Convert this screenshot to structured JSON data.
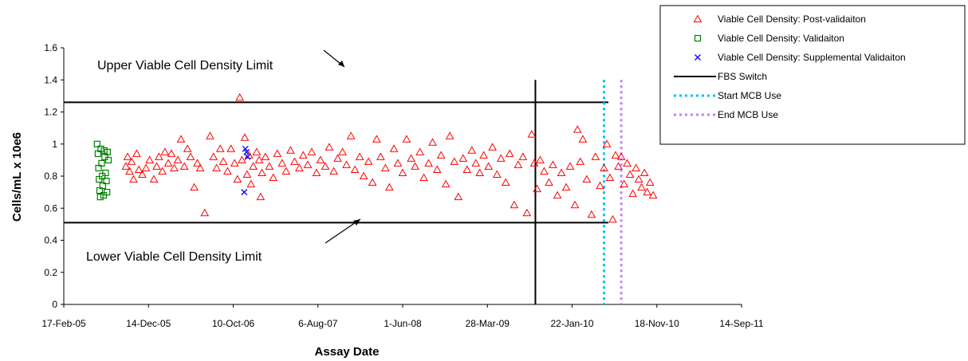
{
  "chart_data": {
    "type": "scatter",
    "xlabel": "Assay Date",
    "ylabel": "Cells/mL x 10e6",
    "ylim": [
      0,
      1.6
    ],
    "yticks": [
      0,
      0.2,
      0.4,
      0.6,
      0.8,
      1,
      1.2,
      1.4,
      1.6
    ],
    "ytick_labels": [
      "0",
      "0.2",
      "0.4",
      "0.6",
      "0.8",
      "1",
      "1.2",
      "1.4",
      "1.6"
    ],
    "xlim": [
      "2005-02-17",
      "2011-09-14"
    ],
    "xticks": [
      "2005-02-17",
      "2005-12-14",
      "2006-10-10",
      "2007-08-06",
      "2008-06-01",
      "2009-03-28",
      "2010-01-22",
      "2010-11-18",
      "2011-09-14"
    ],
    "xtick_labels": [
      "17-Feb-05",
      "14-Dec-05",
      "10-Oct-06",
      "6-Aug-07",
      "1-Jun-08",
      "28-Mar-09",
      "22-Jan-10",
      "18-Nov-10",
      "14-Sep-11"
    ],
    "grid": false,
    "legend_position": "top-right",
    "reference_lines": {
      "upper_limit": 1.26,
      "lower_limit": 0.51,
      "fbs_switch": "2009-09-14",
      "start_mcb": "2010-05-15",
      "end_mcb": "2010-07-15"
    },
    "annotations": {
      "upper": "Upper Viable Cell Density Limit",
      "lower": "Lower Viable Cell Density Limit"
    },
    "legend": [
      {
        "label": "Viable Cell Density: Post-validaiton",
        "marker": "triangle",
        "color": "#ff0000"
      },
      {
        "label": "Viable Cell Density: Validaiton",
        "marker": "square",
        "color": "#008000"
      },
      {
        "label": "Viable Cell Density: Supplemental Validaiton",
        "marker": "x",
        "color": "#0000ff"
      },
      {
        "label": "FBS Switch",
        "marker": "solid-line",
        "color": "#000000"
      },
      {
        "label": "Start MCB Use",
        "marker": "dotted-line",
        "color": "#00c0ff"
      },
      {
        "label": "End MCB Use",
        "marker": "dotted-line",
        "color": "#c080ff"
      }
    ],
    "series": [
      {
        "name": "Viable Cell Density: Post-validaiton",
        "points": [
          [
            "2005-09-25",
            0.86
          ],
          [
            "2005-10-01",
            0.92
          ],
          [
            "2005-10-08",
            0.83
          ],
          [
            "2005-10-15",
            0.89
          ],
          [
            "2005-10-22",
            0.78
          ],
          [
            "2005-11-02",
            0.94
          ],
          [
            "2005-11-10",
            0.84
          ],
          [
            "2005-11-22",
            0.81
          ],
          [
            "2005-12-05",
            0.85
          ],
          [
            "2005-12-18",
            0.9
          ],
          [
            "2006-01-02",
            0.78
          ],
          [
            "2006-01-12",
            0.86
          ],
          [
            "2006-01-20",
            0.92
          ],
          [
            "2006-02-01",
            0.83
          ],
          [
            "2006-02-10",
            0.95
          ],
          [
            "2006-02-22",
            0.88
          ],
          [
            "2006-03-05",
            0.94
          ],
          [
            "2006-03-15",
            0.85
          ],
          [
            "2006-03-28",
            0.9
          ],
          [
            "2006-04-08",
            1.03
          ],
          [
            "2006-04-20",
            0.86
          ],
          [
            "2006-05-01",
            0.97
          ],
          [
            "2006-05-12",
            0.92
          ],
          [
            "2006-05-25",
            0.73
          ],
          [
            "2006-06-05",
            0.88
          ],
          [
            "2006-06-15",
            0.85
          ],
          [
            "2006-07-01",
            0.57
          ],
          [
            "2006-07-20",
            1.05
          ],
          [
            "2006-08-01",
            0.92
          ],
          [
            "2006-08-12",
            0.85
          ],
          [
            "2006-08-25",
            0.97
          ],
          [
            "2006-09-05",
            0.89
          ],
          [
            "2006-09-20",
            0.83
          ],
          [
            "2006-10-02",
            0.97
          ],
          [
            "2006-10-15",
            0.88
          ],
          [
            "2006-10-25",
            0.78
          ],
          [
            "2006-11-02",
            1.29
          ],
          [
            "2006-11-10",
            0.9
          ],
          [
            "2006-11-20",
            1.04
          ],
          [
            "2006-11-28",
            0.81
          ],
          [
            "2006-12-05",
            0.93
          ],
          [
            "2006-12-12",
            0.75
          ],
          [
            "2006-12-20",
            0.86
          ],
          [
            "2007-01-01",
            0.95
          ],
          [
            "2007-01-10",
            0.9
          ],
          [
            "2007-01-15",
            0.67
          ],
          [
            "2007-01-20",
            0.82
          ],
          [
            "2007-02-01",
            0.92
          ],
          [
            "2007-02-15",
            0.86
          ],
          [
            "2007-03-01",
            0.79
          ],
          [
            "2007-03-15",
            0.94
          ],
          [
            "2007-04-01",
            0.88
          ],
          [
            "2007-04-15",
            0.83
          ],
          [
            "2007-05-01",
            0.96
          ],
          [
            "2007-05-15",
            0.89
          ],
          [
            "2007-06-01",
            0.85
          ],
          [
            "2007-06-15",
            0.93
          ],
          [
            "2007-07-01",
            0.87
          ],
          [
            "2007-07-15",
            0.95
          ],
          [
            "2007-08-01",
            0.82
          ],
          [
            "2007-08-15",
            0.9
          ],
          [
            "2007-09-01",
            0.86
          ],
          [
            "2007-09-15",
            0.98
          ],
          [
            "2007-10-01",
            0.83
          ],
          [
            "2007-10-15",
            0.91
          ],
          [
            "2007-11-01",
            0.95
          ],
          [
            "2007-11-15",
            0.87
          ],
          [
            "2007-12-01",
            1.05
          ],
          [
            "2007-12-15",
            0.84
          ],
          [
            "2008-01-01",
            0.92
          ],
          [
            "2008-01-15",
            0.8
          ],
          [
            "2008-02-01",
            0.89
          ],
          [
            "2008-02-15",
            0.76
          ],
          [
            "2008-03-01",
            1.03
          ],
          [
            "2008-03-15",
            0.92
          ],
          [
            "2008-04-01",
            0.85
          ],
          [
            "2008-04-15",
            0.73
          ],
          [
            "2008-05-01",
            0.97
          ],
          [
            "2008-05-15",
            0.88
          ],
          [
            "2008-06-01",
            0.82
          ],
          [
            "2008-06-15",
            1.03
          ],
          [
            "2008-07-01",
            0.91
          ],
          [
            "2008-07-15",
            0.86
          ],
          [
            "2008-08-01",
            0.95
          ],
          [
            "2008-08-15",
            0.79
          ],
          [
            "2008-09-01",
            0.88
          ],
          [
            "2008-09-15",
            1.01
          ],
          [
            "2008-10-01",
            0.84
          ],
          [
            "2008-10-15",
            0.93
          ],
          [
            "2008-11-01",
            0.75
          ],
          [
            "2008-11-15",
            1.05
          ],
          [
            "2008-12-01",
            0.89
          ],
          [
            "2008-12-15",
            0.67
          ],
          [
            "2009-01-01",
            0.91
          ],
          [
            "2009-01-15",
            0.84
          ],
          [
            "2009-02-01",
            0.96
          ],
          [
            "2009-02-15",
            0.88
          ],
          [
            "2009-03-01",
            0.82
          ],
          [
            "2009-03-15",
            0.93
          ],
          [
            "2009-04-01",
            0.86
          ],
          [
            "2009-04-15",
            0.98
          ],
          [
            "2009-05-01",
            0.81
          ],
          [
            "2009-05-15",
            0.91
          ],
          [
            "2009-06-01",
            0.76
          ],
          [
            "2009-06-15",
            0.94
          ],
          [
            "2009-07-01",
            0.62
          ],
          [
            "2009-07-15",
            0.87
          ],
          [
            "2009-08-01",
            0.92
          ],
          [
            "2009-08-15",
            0.57
          ],
          [
            "2009-09-01",
            1.06
          ],
          [
            "2009-09-10",
            0.88
          ],
          [
            "2009-09-20",
            0.72
          ],
          [
            "2009-10-01",
            0.9
          ],
          [
            "2009-10-15",
            0.83
          ],
          [
            "2009-11-01",
            0.76
          ],
          [
            "2009-11-15",
            0.87
          ],
          [
            "2009-12-01",
            0.68
          ],
          [
            "2009-12-15",
            0.82
          ],
          [
            "2010-01-01",
            0.73
          ],
          [
            "2010-01-15",
            0.86
          ],
          [
            "2010-02-01",
            0.62
          ],
          [
            "2010-02-10",
            1.09
          ],
          [
            "2010-02-20",
            0.89
          ],
          [
            "2010-03-01",
            1.03
          ],
          [
            "2010-03-15",
            0.78
          ],
          [
            "2010-04-01",
            0.56
          ],
          [
            "2010-04-15",
            0.92
          ],
          [
            "2010-05-01",
            0.74
          ],
          [
            "2010-05-15",
            0.85
          ],
          [
            "2010-05-25",
            1.0
          ],
          [
            "2010-06-05",
            0.79
          ],
          [
            "2010-06-15",
            0.53
          ],
          [
            "2010-06-25",
            0.93
          ],
          [
            "2010-07-05",
            0.86
          ],
          [
            "2010-07-15",
            0.92
          ],
          [
            "2010-07-25",
            0.75
          ],
          [
            "2010-08-05",
            0.88
          ],
          [
            "2010-08-15",
            0.81
          ],
          [
            "2010-08-25",
            0.69
          ],
          [
            "2010-09-05",
            0.85
          ],
          [
            "2010-09-15",
            0.78
          ],
          [
            "2010-09-25",
            0.73
          ],
          [
            "2010-10-05",
            0.82
          ],
          [
            "2010-10-15",
            0.7
          ],
          [
            "2010-10-25",
            0.76
          ],
          [
            "2010-11-05",
            0.68
          ]
        ]
      },
      {
        "name": "Viable Cell Density: Validaiton",
        "points": [
          [
            "2005-06-15",
            1.0
          ],
          [
            "2005-06-18",
            0.94
          ],
          [
            "2005-06-20",
            0.85
          ],
          [
            "2005-06-22",
            0.78
          ],
          [
            "2005-06-24",
            0.71
          ],
          [
            "2005-06-26",
            0.67
          ],
          [
            "2005-06-28",
            0.97
          ],
          [
            "2005-07-01",
            0.88
          ],
          [
            "2005-07-03",
            0.8
          ],
          [
            "2005-07-05",
            0.74
          ],
          [
            "2005-07-08",
            0.68
          ],
          [
            "2005-07-10",
            0.96
          ],
          [
            "2005-07-12",
            0.92
          ],
          [
            "2005-07-15",
            0.82
          ],
          [
            "2005-07-18",
            0.77
          ],
          [
            "2005-07-20",
            0.7
          ],
          [
            "2005-07-22",
            0.95
          ],
          [
            "2005-07-25",
            0.9
          ]
        ]
      },
      {
        "name": "Viable Cell Density: Supplemental Validaiton",
        "points": [
          [
            "2006-11-18",
            0.7
          ],
          [
            "2006-11-22",
            0.97
          ],
          [
            "2006-11-26",
            0.95
          ],
          [
            "2006-11-30",
            0.92
          ]
        ]
      }
    ]
  }
}
